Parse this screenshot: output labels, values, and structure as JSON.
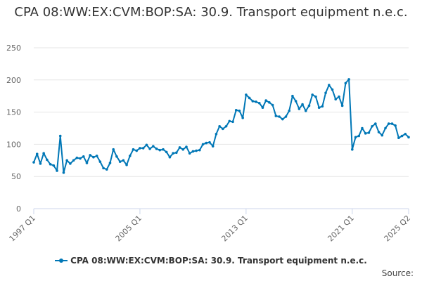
{
  "chart_data": {
    "type": "line",
    "title": "CPA 08:WW:EX:CVM:BOP:SA: 30.9. Transport equipment n.e.c.",
    "xlabel": "",
    "ylabel": "",
    "ylim": [
      0,
      250
    ],
    "yticks": [
      0,
      50,
      100,
      150,
      200,
      250
    ],
    "xticks": [
      "1997 Q1",
      "2005 Q1",
      "2013 Q1",
      "2021 Q1",
      "2025 Q2"
    ],
    "x_range": [
      "1997 Q1",
      "2025 Q2"
    ],
    "grid": "horizontal",
    "legend_position": "bottom-center",
    "color": "#0077b6",
    "series": [
      {
        "name": "CPA 08:WW:EX:CVM:BOP:SA: 30.9. Transport equipment n.e.c.",
        "x": [
          "1997 Q1",
          "1997 Q2",
          "1997 Q3",
          "1997 Q4",
          "1998 Q1",
          "1998 Q2",
          "1998 Q3",
          "1998 Q4",
          "1999 Q1",
          "1999 Q2",
          "1999 Q3",
          "1999 Q4",
          "2000 Q1",
          "2000 Q2",
          "2000 Q3",
          "2000 Q4",
          "2001 Q1",
          "2001 Q2",
          "2001 Q3",
          "2001 Q4",
          "2002 Q1",
          "2002 Q2",
          "2002 Q3",
          "2002 Q4",
          "2003 Q1",
          "2003 Q2",
          "2003 Q3",
          "2003 Q4",
          "2004 Q1",
          "2004 Q2",
          "2004 Q3",
          "2004 Q4",
          "2005 Q1",
          "2005 Q2",
          "2005 Q3",
          "2005 Q4",
          "2006 Q1",
          "2006 Q2",
          "2006 Q3",
          "2006 Q4",
          "2007 Q1",
          "2007 Q2",
          "2007 Q3",
          "2007 Q4",
          "2008 Q1",
          "2008 Q2",
          "2008 Q3",
          "2008 Q4",
          "2009 Q1",
          "2009 Q2",
          "2009 Q3",
          "2009 Q4",
          "2010 Q1",
          "2010 Q2",
          "2010 Q3",
          "2010 Q4",
          "2011 Q1",
          "2011 Q2",
          "2011 Q3",
          "2011 Q4",
          "2012 Q1",
          "2012 Q2",
          "2012 Q3",
          "2012 Q4",
          "2013 Q1",
          "2013 Q2",
          "2013 Q3",
          "2013 Q4",
          "2014 Q1",
          "2014 Q2",
          "2014 Q3",
          "2014 Q4",
          "2015 Q1",
          "2015 Q2",
          "2015 Q3",
          "2015 Q4",
          "2016 Q1",
          "2016 Q2",
          "2016 Q3",
          "2016 Q4",
          "2017 Q1",
          "2017 Q2",
          "2017 Q3",
          "2017 Q4",
          "2018 Q1",
          "2018 Q2",
          "2018 Q3",
          "2018 Q4",
          "2019 Q1",
          "2019 Q2",
          "2019 Q3",
          "2019 Q4",
          "2020 Q1",
          "2020 Q2",
          "2020 Q3",
          "2020 Q4",
          "2021 Q1",
          "2021 Q2",
          "2021 Q3",
          "2021 Q4",
          "2022 Q1",
          "2022 Q2",
          "2022 Q3",
          "2022 Q4",
          "2023 Q1",
          "2023 Q2",
          "2023 Q3",
          "2023 Q4",
          "2024 Q1",
          "2024 Q2",
          "2024 Q3",
          "2024 Q4",
          "2025 Q1",
          "2025 Q2"
        ],
        "values": [
          72,
          85,
          70,
          86,
          76,
          69,
          67,
          59,
          113,
          56,
          75,
          70,
          75,
          79,
          78,
          81,
          71,
          83,
          80,
          82,
          73,
          63,
          61,
          71,
          92,
          81,
          73,
          75,
          68,
          82,
          92,
          90,
          94,
          94,
          99,
          93,
          97,
          93,
          91,
          92,
          88,
          80,
          86,
          87,
          95,
          92,
          96,
          86,
          89,
          90,
          91,
          100,
          102,
          103,
          97,
          116,
          128,
          124,
          128,
          136,
          135,
          153,
          152,
          141,
          177,
          172,
          167,
          166,
          164,
          157,
          168,
          165,
          161,
          144,
          143,
          139,
          143,
          152,
          175,
          167,
          155,
          162,
          152,
          160,
          177,
          174,
          157,
          159,
          180,
          192,
          185,
          170,
          174,
          160,
          195,
          201,
          92,
          111,
          113,
          125,
          117,
          118,
          128,
          132,
          119,
          114,
          125,
          132,
          132,
          129,
          110,
          113,
          116,
          111
        ]
      }
    ]
  },
  "legend": {
    "label": "CPA 08:WW:EX:CVM:BOP:SA: 30.9. Transport equipment n.e.c."
  },
  "credits": {
    "text": "Source:"
  }
}
